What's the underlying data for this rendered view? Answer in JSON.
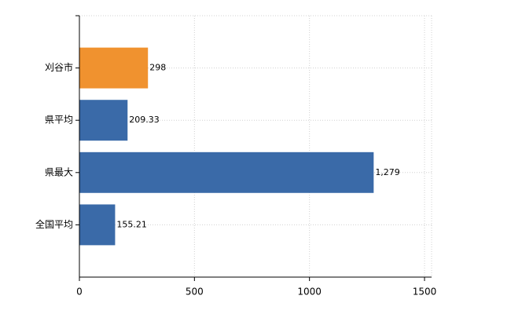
{
  "chart_data": {
    "type": "barh",
    "categories": [
      "刈谷市",
      "県平均",
      "県最大",
      "全国平均"
    ],
    "values": [
      298,
      209.33,
      1279,
      155.21
    ],
    "value_labels": [
      "298",
      "209.33",
      "1,279",
      "155.21"
    ],
    "colors": [
      "#f0922f",
      "#3a6aa8",
      "#3a6aa8",
      "#3a6aa8"
    ],
    "xlim": [
      0,
      1500
    ],
    "xticks": [
      0,
      500,
      1000,
      1500
    ],
    "grid": true
  }
}
